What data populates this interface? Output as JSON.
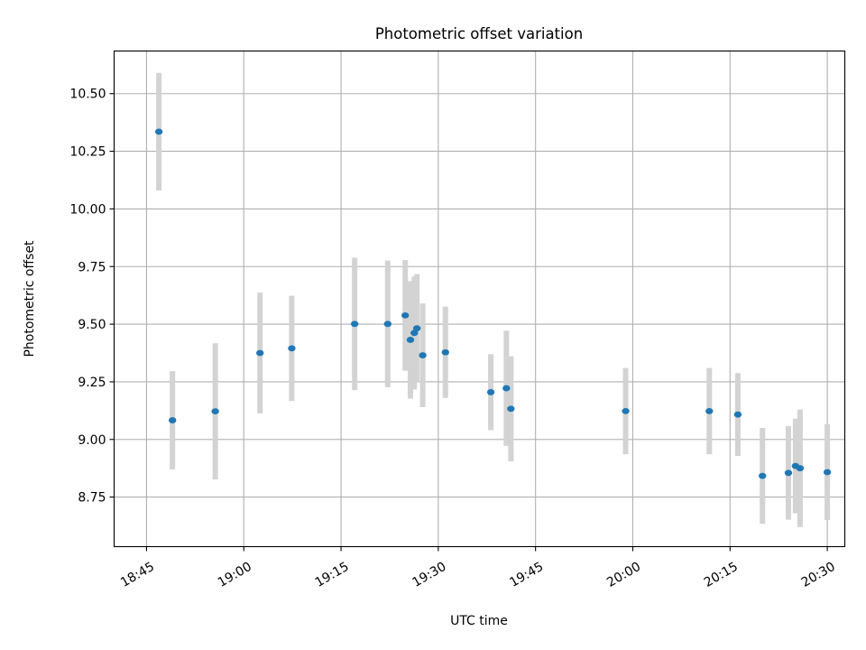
{
  "chart_data": {
    "type": "scatter",
    "title": "Photometric offset variation",
    "xlabel": "UTC time",
    "ylabel": "Photometric offset",
    "xlim": [
      "18:40",
      "20:32.7"
    ],
    "ylim": [
      8.535,
      10.685
    ],
    "x_ticks": [
      "18:45",
      "19:00",
      "19:15",
      "19:30",
      "19:45",
      "20:00",
      "20:15",
      "20:30"
    ],
    "y_ticks": [
      "8.75",
      "9.00",
      "9.25",
      "9.50",
      "9.75",
      "10.00",
      "10.25",
      "10.50"
    ],
    "grid": true,
    "colors": {
      "point": "#1f77b4",
      "errorbar": "#d3d3d3",
      "grid": "#b0b0b0",
      "axes": "#000000"
    },
    "series": [
      {
        "points": [
          {
            "t": "18:46.9",
            "y": 10.335,
            "err": 0.255
          },
          {
            "t": "18:49.0",
            "y": 9.083,
            "err": 0.213
          },
          {
            "t": "18:55.6",
            "y": 9.122,
            "err": 0.295
          },
          {
            "t": "19:02.5",
            "y": 9.375,
            "err": 0.262
          },
          {
            "t": "19:07.4",
            "y": 9.395,
            "err": 0.228
          },
          {
            "t": "19:17.1",
            "y": 9.501,
            "err": 0.287
          },
          {
            "t": "19:22.2",
            "y": 9.501,
            "err": 0.275
          },
          {
            "t": "19:24.9",
            "y": 9.538,
            "err": 0.24
          },
          {
            "t": "19:25.7",
            "y": 9.432,
            "err": 0.255
          },
          {
            "t": "19:26.3",
            "y": 9.462,
            "err": 0.245
          },
          {
            "t": "19:26.7",
            "y": 9.482,
            "err": 0.235
          },
          {
            "t": "19:27.6",
            "y": 9.365,
            "err": 0.225
          },
          {
            "t": "19:31.1",
            "y": 9.378,
            "err": 0.198
          },
          {
            "t": "19:38.1",
            "y": 9.205,
            "err": 0.165
          },
          {
            "t": "19:40.5",
            "y": 9.222,
            "err": 0.25
          },
          {
            "t": "19:41.2",
            "y": 9.133,
            "err": 0.228
          },
          {
            "t": "19:58.9",
            "y": 9.123,
            "err": 0.187
          },
          {
            "t": "20:11.8",
            "y": 9.123,
            "err": 0.187
          },
          {
            "t": "20:16.2",
            "y": 9.108,
            "err": 0.18
          },
          {
            "t": "20:20.0",
            "y": 8.842,
            "err": 0.208
          },
          {
            "t": "20:24.0",
            "y": 8.855,
            "err": 0.203
          },
          {
            "t": "20:25.1",
            "y": 8.885,
            "err": 0.205
          },
          {
            "t": "20:25.8",
            "y": 8.875,
            "err": 0.255
          },
          {
            "t": "20:30.0",
            "y": 8.858,
            "err": 0.208
          }
        ]
      }
    ]
  }
}
